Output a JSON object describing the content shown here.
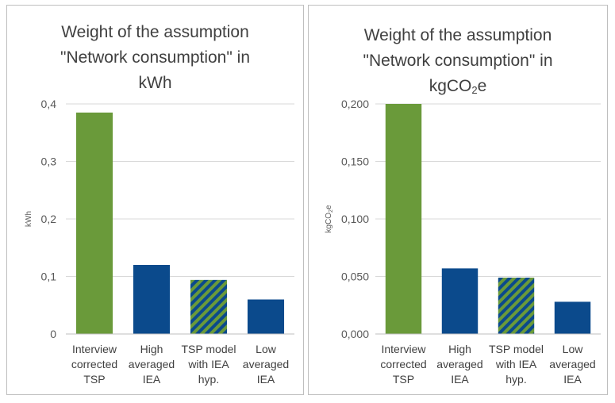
{
  "chart_data": [
    {
      "type": "bar",
      "title_lines": [
        "Weight of the assumption",
        "\"Network consumption\" in",
        "kWh"
      ],
      "ylabel": "kWh",
      "ylim": [
        0,
        0.4
      ],
      "ticks": [
        "0",
        "0,1",
        "0,2",
        "0,3",
        "0,4"
      ],
      "tick_values": [
        0,
        0.1,
        0.2,
        0.3,
        0.4
      ],
      "categories": [
        [
          "Interview",
          "corrected",
          "TSP"
        ],
        [
          "High",
          "averaged",
          "IEA"
        ],
        [
          "TSP model",
          "with IEA",
          "hyp."
        ],
        [
          "Low",
          "averaged",
          "IEA"
        ]
      ],
      "values": [
        0.385,
        0.12,
        0.094,
        0.06
      ],
      "bar_styles": [
        "green",
        "blue",
        "hatched",
        "blue"
      ],
      "grid": true
    },
    {
      "type": "bar",
      "title_lines": [
        "Weight of the assumption",
        "\"Network consumption\" in",
        "kgCO2e"
      ],
      "ylabel": "kgCO2e",
      "ylim": [
        0,
        0.2
      ],
      "ticks": [
        "0,000",
        "0,050",
        "0,100",
        "0,150",
        "0,200"
      ],
      "tick_values": [
        0,
        0.05,
        0.1,
        0.15,
        0.2
      ],
      "categories": [
        [
          "Interview",
          "corrected",
          "TSP"
        ],
        [
          "High",
          "averaged",
          "IEA"
        ],
        [
          "TSP model",
          "with IEA",
          "hyp."
        ],
        [
          "Low",
          "averaged",
          "IEA"
        ]
      ],
      "values": [
        0.2,
        0.057,
        0.049,
        0.028
      ],
      "bar_styles": [
        "green",
        "blue",
        "hatched",
        "blue"
      ],
      "grid": true
    }
  ],
  "colors": {
    "green": "#6a9a3a",
    "blue": "#0b4a8c",
    "grid": "#d9d9d9",
    "axis": "#bfbfbf"
  }
}
